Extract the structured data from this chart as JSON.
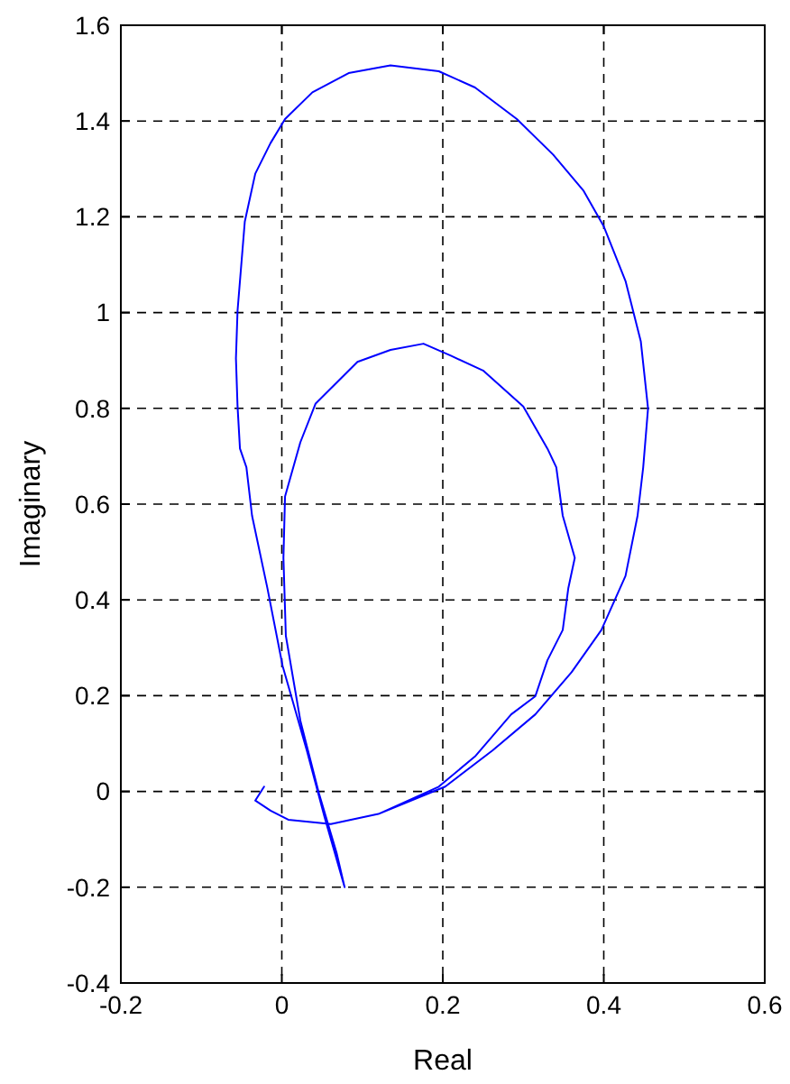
{
  "chart_data": {
    "type": "line",
    "xlabel": "Real",
    "ylabel": "Imaginary",
    "xlim": [
      -0.2,
      0.6
    ],
    "xticks": [
      -0.2,
      0,
      0.2,
      0.4,
      0.6
    ],
    "ylim": [
      -0.4,
      1.6
    ],
    "yticks": [
      -0.4,
      -0.2,
      0,
      0.2,
      0.4,
      0.6,
      0.8,
      1,
      1.2,
      1.4,
      1.6
    ],
    "grid": true,
    "marker": "none",
    "line_style": "solid",
    "series": [
      {
        "color": "#0000ff",
        "x": [
          -0.022,
          -0.033,
          -0.014,
          0.008,
          0.061,
          0.12,
          0.195,
          0.24,
          0.285,
          0.315,
          0.33,
          0.349,
          0.356,
          0.364,
          0.349,
          0.341,
          0.33,
          0.3,
          0.25,
          0.21,
          0.176,
          0.135,
          0.094,
          0.042,
          0.023,
          0.004,
          0.002,
          0.005,
          0.023,
          0.046,
          0.068,
          0.078,
          0.053,
          0.031,
          0.001,
          -0.018,
          -0.037,
          -0.044,
          -0.052,
          -0.055,
          -0.057,
          -0.055,
          -0.046,
          -0.033,
          -0.014,
          0.004,
          0.038,
          0.083,
          0.135,
          0.195,
          0.24,
          0.292,
          0.337,
          0.375,
          0.4,
          0.427,
          0.446,
          0.455,
          0.449,
          0.442,
          0.427,
          0.397,
          0.36,
          0.315,
          0.262,
          0.203,
          0.12,
          0.061,
          0.008,
          -0.014
        ],
        "values": [
          0.01,
          -0.019,
          -0.04,
          -0.059,
          -0.068,
          -0.047,
          0.01,
          0.073,
          0.161,
          0.199,
          0.274,
          0.337,
          0.425,
          0.488,
          0.576,
          0.677,
          0.716,
          0.804,
          0.879,
          0.91,
          0.935,
          0.922,
          0.897,
          0.81,
          0.729,
          0.616,
          0.488,
          0.325,
          0.148,
          -0.003,
          -0.128,
          -0.2,
          -0.053,
          0.086,
          0.262,
          0.425,
          0.576,
          0.677,
          0.716,
          0.804,
          0.904,
          1.004,
          1.19,
          1.29,
          1.354,
          1.404,
          1.46,
          1.5,
          1.516,
          1.504,
          1.47,
          1.404,
          1.33,
          1.254,
          1.18,
          1.066,
          0.94,
          0.8,
          0.677,
          0.576,
          0.45,
          0.337,
          0.249,
          0.161,
          0.086,
          0.01,
          -0.047,
          -0.068,
          -0.059,
          -0.04
        ]
      }
    ]
  }
}
